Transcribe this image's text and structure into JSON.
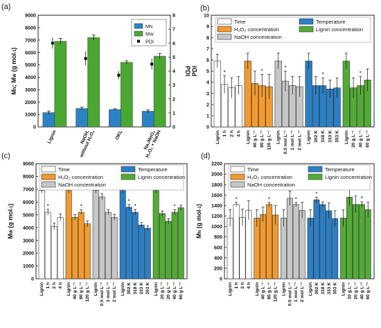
{
  "figure": {
    "background": "#ffffff",
    "colors": {
      "mn_blue": "#2b83c6",
      "mw_green": "#4aa832",
      "time_white": "#ffffff",
      "h2o2_orange": "#f29a2e",
      "naoh_gray": "#c6c6c6",
      "temp_blue": "#2b7fc4",
      "lignin_green": "#53ab36",
      "axis": "#222222"
    }
  },
  "chart_data": [
    {
      "id": "a",
      "panel_label": "(a)",
      "type": "bar",
      "categories": [
        "Lignin",
        "NaOH without H₂O₂",
        "OKL",
        "Na₂MoO₄ H₂O₂ + NaOH"
      ],
      "category_lines": [
        [
          "Lignin"
        ],
        [
          "NaOH,",
          "without H₂O₂"
        ],
        [
          "OKL"
        ],
        [
          "Na₂MoO₄",
          "H₂O₂ + NaOH"
        ]
      ],
      "ylabel": "Mₙ; Mᵥᵥ (g mol⁻¹)",
      "ylabel_parts": [
        "M",
        "N",
        "; M",
        "W",
        " (g mol",
        "-1",
        ")"
      ],
      "y2label": "PDI",
      "ylim": [
        0,
        9000
      ],
      "yticks": [
        0,
        1000,
        2000,
        3000,
        4000,
        5000,
        6000,
        7000,
        8000,
        9000
      ],
      "y2lim": [
        0,
        8
      ],
      "y2ticks": [
        0,
        1,
        2,
        3,
        4,
        5,
        6,
        7,
        8
      ],
      "legend": {
        "position": "top-right",
        "items": [
          "M_N",
          "M_W",
          "PDI"
        ],
        "labels": [
          [
            "M",
            "N"
          ],
          [
            "M",
            "W"
          ],
          [
            "PDI",
            ""
          ]
        ]
      },
      "series": [
        {
          "name": "M_N",
          "values": [
            1150,
            1480,
            1400,
            1260
          ],
          "errors": [
            130,
            120,
            60,
            120
          ]
        },
        {
          "name": "M_W",
          "values": [
            6900,
            7200,
            5200,
            5700
          ],
          "errors": [
            220,
            200,
            120,
            220
          ]
        },
        {
          "name": "PDI",
          "values": [
            6.0,
            4.9,
            3.7,
            4.5
          ],
          "errors": [
            0.4,
            0.5,
            0.3,
            0.4
          ]
        }
      ]
    },
    {
      "id": "b",
      "panel_label": "(b)",
      "type": "bar",
      "ylabel": "PDI",
      "ylim": [
        0,
        10
      ],
      "yticks": [
        0,
        1,
        2,
        3,
        4,
        5,
        6,
        7,
        8,
        9,
        10
      ],
      "categories": [
        "Lignin",
        "1 h",
        "2 h",
        "4 h",
        "Lignin",
        "40 g L⁻¹",
        "80 g L⁻¹",
        "120 g L⁻¹",
        "Lignin",
        "0.5 mol L⁻¹",
        "1 mol L⁻¹",
        "2 mol L⁻¹",
        "Lignin",
        "302 K",
        "318 K",
        "333 K",
        "353 K",
        "Lignin",
        "20 g L⁻¹",
        "40 g L⁻¹",
        "60 g L⁻¹"
      ],
      "groups": [
        3,
        3,
        3,
        4,
        3
      ],
      "values": [
        5.9,
        3.8,
        3.5,
        3.7,
        5.9,
        3.9,
        3.7,
        3.6,
        5.9,
        4.1,
        3.7,
        3.6,
        5.9,
        3.7,
        3.7,
        3.4,
        3.5,
        5.9,
        3.5,
        3.7,
        4.2
      ],
      "errors": [
        0.6,
        0.8,
        0.9,
        0.8,
        0.7,
        1.1,
        1.0,
        1.1,
        0.7,
        0.9,
        0.8,
        0.9,
        0.7,
        0.8,
        0.7,
        0.8,
        0.9,
        0.7,
        0.9,
        0.8,
        1.0
      ],
      "significant": [
        false,
        true,
        false,
        false,
        false,
        false,
        true,
        false,
        false,
        true,
        false,
        false,
        false,
        false,
        true,
        false,
        false,
        false,
        false,
        true,
        false
      ],
      "legend": {
        "position": "top",
        "items": [
          "Time",
          "H₂O₂ concentration",
          "NaOH concentration",
          "Temperature",
          "Lignin concentration"
        ]
      }
    },
    {
      "id": "c",
      "panel_label": "(c)",
      "type": "bar",
      "ylabel": "Mᵥᵥ (g mol⁻¹)",
      "ylabel_parts": [
        "M",
        "W",
        " (g mol",
        "-1",
        ")"
      ],
      "ylim": [
        0,
        9000
      ],
      "yticks": [
        0,
        1000,
        2000,
        3000,
        4000,
        5000,
        6000,
        7000,
        8000,
        9000
      ],
      "categories": [
        "Lignin",
        "1 h",
        "2 h",
        "4 h",
        "Lignin",
        "40 g L⁻¹",
        "80 g L⁻¹",
        "120 g L⁻¹",
        "Lignin",
        "0.5 mol L⁻¹",
        "1 mol L⁻¹",
        "2 mol L⁻¹",
        "Lignin",
        "302 K",
        "318 K",
        "333 K",
        "353 K",
        "Lignin",
        "10 g L⁻¹",
        "20 g L⁻¹",
        "40 g L⁻¹",
        "60 g L⁻¹"
      ],
      "groups": [
        3,
        3,
        3,
        4,
        4
      ],
      "values": [
        6900,
        5200,
        4100,
        4800,
        6900,
        4800,
        5200,
        4300,
        6900,
        6400,
        5200,
        4800,
        6900,
        5600,
        5200,
        4200,
        3950,
        6900,
        5100,
        4500,
        5200,
        5550
      ],
      "errors": [
        200,
        230,
        250,
        280,
        200,
        220,
        200,
        230,
        200,
        240,
        200,
        220,
        200,
        200,
        220,
        200,
        180,
        200,
        200,
        200,
        200,
        200
      ],
      "significant": [
        false,
        true,
        false,
        false,
        false,
        false,
        true,
        false,
        false,
        false,
        false,
        false,
        false,
        true,
        true,
        false,
        false,
        false,
        false,
        false,
        true,
        false
      ],
      "legend": {
        "position": "top",
        "items": [
          "Time",
          "H₂O₂ concentration",
          "NaOH concentration",
          "Temperature",
          "Lignin concentration"
        ]
      }
    },
    {
      "id": "d",
      "panel_label": "(d)",
      "type": "bar",
      "ylabel": "Mₙ (g mol⁻¹)",
      "ylabel_parts": [
        "M",
        "N",
        " (g mol",
        "-1",
        ")"
      ],
      "ylim": [
        0,
        2200
      ],
      "yticks": [
        0,
        200,
        400,
        600,
        800,
        1000,
        1200,
        1400,
        1600,
        1800,
        2000,
        2200
      ],
      "categories": [
        "Lignin",
        "1 h",
        "2 h",
        "4 h",
        "Lignin",
        "40 g L⁻¹",
        "80 g L⁻¹",
        "120 g L⁻¹",
        "Lignin",
        "0.5 mol L⁻¹",
        "1 mol L⁻¹",
        "2 mol L⁻¹",
        "Lignin",
        "302 K",
        "318 K",
        "333 K",
        "353 K",
        "Lignin",
        "10 g L⁻¹",
        "20 g L⁻¹",
        "40 g L⁻¹",
        "60 g L⁻¹"
      ],
      "groups": [
        3,
        3,
        3,
        4,
        4
      ],
      "values": [
        1160,
        1420,
        1170,
        1310,
        1160,
        1230,
        1420,
        1220,
        1160,
        1540,
        1420,
        1310,
        1160,
        1510,
        1420,
        1300,
        1150,
        1160,
        1560,
        1420,
        1420,
        1320
      ],
      "errors": [
        160,
        40,
        160,
        180,
        160,
        140,
        40,
        180,
        160,
        140,
        40,
        150,
        160,
        50,
        50,
        150,
        150,
        160,
        170,
        160,
        50,
        140
      ],
      "significant": [
        false,
        true,
        false,
        false,
        false,
        false,
        true,
        false,
        false,
        false,
        true,
        false,
        false,
        true,
        false,
        false,
        false,
        false,
        false,
        false,
        true,
        false
      ],
      "legend": {
        "position": "top",
        "items": [
          "Time",
          "H₂O₂ concentration",
          "NaOH concentration",
          "Temperature",
          "Lignin concentration"
        ]
      }
    }
  ]
}
